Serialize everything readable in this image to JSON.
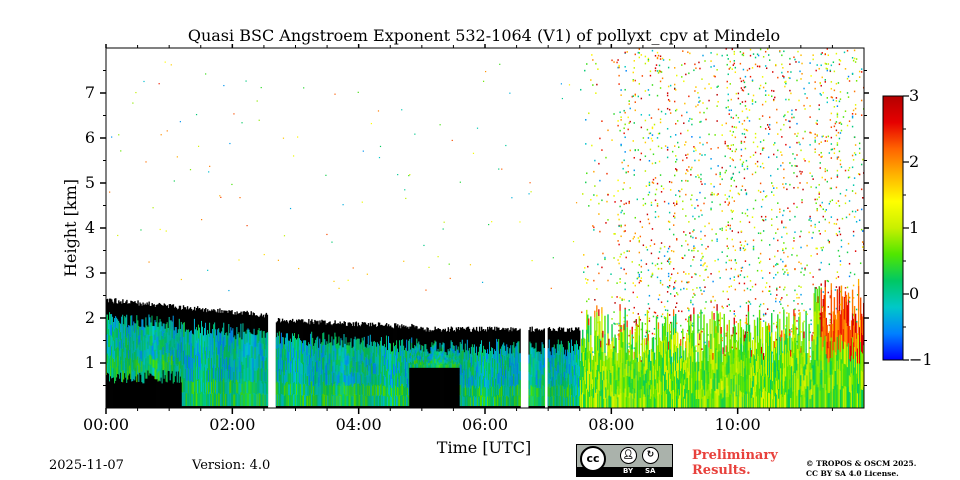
{
  "chart_data": {
    "type": "heatmap",
    "title": "Quasi BSC Angstroem Exponent 532-1064 (V1) of pollyxt_cpv at Mindelo",
    "xlabel": "Time [UTC]",
    "ylabel": "Height [km]",
    "xlim": [
      0,
      12
    ],
    "ylim": [
      0,
      8
    ],
    "x_tick_values": [
      0,
      2,
      4,
      6,
      8,
      10
    ],
    "x_tick_labels": [
      "00:00",
      "02:00",
      "04:00",
      "06:00",
      "08:00",
      "10:00"
    ],
    "y_tick_values": [
      1,
      2,
      3,
      4,
      5,
      6,
      7
    ],
    "y_tick_labels": [
      "1",
      "2",
      "3",
      "4",
      "5",
      "6",
      "7"
    ],
    "colorbar": {
      "vmin": -1,
      "vmax": 3,
      "tick_values": [
        -1,
        0,
        1,
        2,
        3
      ],
      "tick_labels": [
        "−1",
        "0",
        "1",
        "2",
        "3"
      ],
      "colormap": [
        "#0000ff",
        "#0080ff",
        "#00c8c8",
        "#00c864",
        "#50e600",
        "#c8f000",
        "#ffff00",
        "#ffb400",
        "#ff6400",
        "#e60000",
        "#b40000"
      ]
    },
    "data_gaps_hours": [
      [
        2.55,
        2.68
      ],
      [
        6.55,
        6.68
      ],
      [
        6.93,
        6.98
      ]
    ],
    "regimes": [
      {
        "name": "black-masked aerosol layer",
        "t_start": 0.0,
        "t_end": 7.5,
        "top_km": 2.4
      },
      {
        "name": "near-neutral values (~0 to 1)",
        "t_start": 7.5,
        "t_end": 12.0,
        "top_km": 2.2
      },
      {
        "name": "scattered high values (~2 to 3)",
        "t_start": 8.0,
        "t_end": 12.0,
        "top_km": 8.0
      }
    ]
  },
  "footer": {
    "date": "2025-11-07",
    "version": "Version: 4.0",
    "preliminary": [
      "Preliminary",
      "Results."
    ],
    "copyright": [
      "© TROPOS & OSCM 2025.",
      "CC BY SA 4.0 License."
    ],
    "license_badge": {
      "main": "cc",
      "by": "BY",
      "sa": "SA"
    }
  },
  "colors": {
    "masked": "#000000",
    "background": "#ffffff",
    "preliminary": "#e8413c"
  }
}
